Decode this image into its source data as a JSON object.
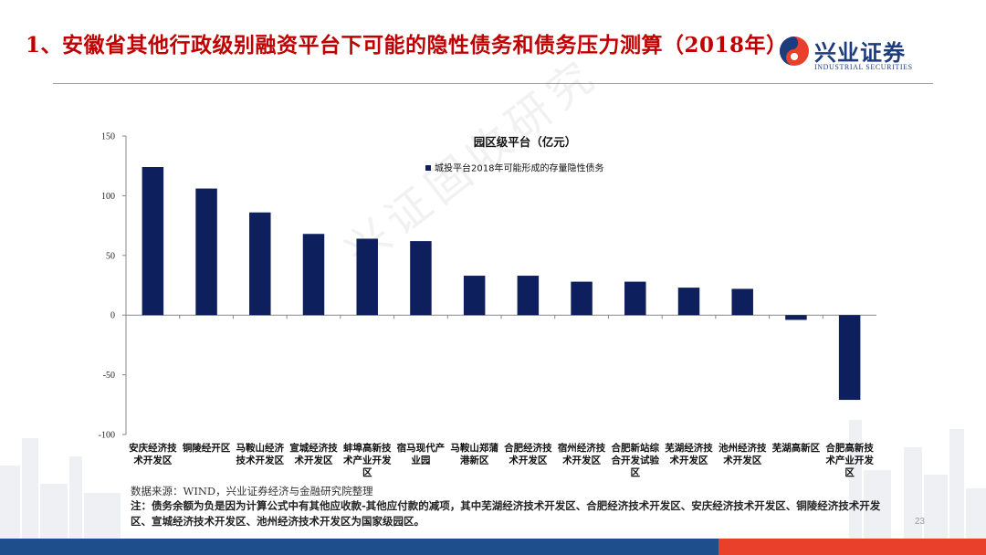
{
  "header": {
    "title": "1、安徽省其他行政级别融资平台下可能的隐性债务和债务压力测算（2018年）"
  },
  "logo": {
    "name_cn": "兴业证券",
    "name_en": "INDUSTRIAL SECURITIES"
  },
  "watermark": "兴证固收研究",
  "footer": {
    "source": "数据来源：WIND，兴业证券经济与金融研究院整理",
    "note": "注：债务余额为负是因为计算公式中有其他应收款-其他应付款的减项，其中芜湖经济技术开发区、合肥经济技术开发区、安庆经济技术开发区、铜陵经济技术开发区、宣城经济技术开发区、池州经济技术开发区为国家级园区。",
    "page_number": "23"
  },
  "colors": {
    "title_red": "#c00000",
    "bar_navy": "#0d1f5c",
    "footer_blue": "#1f4e8c",
    "footer_red": "#e8402a"
  },
  "chart_data": {
    "type": "bar",
    "title": "园区级平台（亿元）",
    "legend_position": "top-center",
    "categories": [
      [
        "安庆经济技",
        "术开发区"
      ],
      [
        "铜陵经开区"
      ],
      [
        "马鞍山经济",
        "技术开发区"
      ],
      [
        "宣城经济技",
        "术开发区"
      ],
      [
        "蚌埠高新技",
        "术产业开发",
        "区"
      ],
      [
        "宿马现代产",
        "业园"
      ],
      [
        "马鞍山郑蒲",
        "港新区"
      ],
      [
        "合肥经济技",
        "术开发区"
      ],
      [
        "宿州经济技",
        "术开发区"
      ],
      [
        "合肥新站综",
        "合开发试验",
        "区"
      ],
      [
        "芜湖经济技",
        "术开发区"
      ],
      [
        "池州经济技",
        "术开发区"
      ],
      [
        "芜湖高新区"
      ],
      [
        "合肥高新技",
        "术产业开发",
        "区"
      ]
    ],
    "series": [
      {
        "name": "城投平台2018年可能形成的存量隐性债务",
        "values": [
          124,
          106,
          86,
          68,
          64,
          62,
          33,
          33,
          28,
          28,
          23,
          22,
          -4,
          -71
        ]
      }
    ],
    "y_ticks": [
      150,
      100,
      50,
      0,
      -50,
      -100
    ],
    "ylim": [
      -100,
      150
    ],
    "grid": false
  }
}
